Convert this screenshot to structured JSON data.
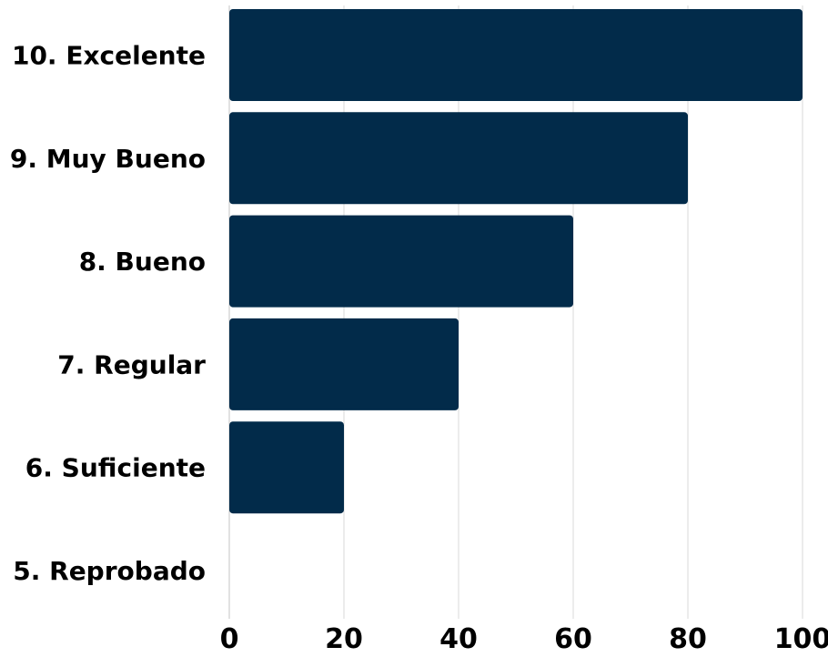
{
  "chart_data": {
    "type": "bar",
    "orientation": "horizontal",
    "categories": [
      "10. Excelente",
      "9. Muy Bueno",
      "8. Bueno",
      "7. Regular",
      "6. Suficiente",
      "5. Reprobado"
    ],
    "values": [
      100,
      80,
      60,
      40,
      20,
      0
    ],
    "x_ticks": [
      "0",
      "20",
      "40",
      "60",
      "80",
      "100"
    ],
    "xlim": [
      0,
      100
    ],
    "grid": true,
    "title": "",
    "xlabel": "",
    "ylabel": "",
    "colors": {
      "bar": "#022b4a",
      "grid": "#d9d9d9",
      "text": "#000000"
    }
  }
}
